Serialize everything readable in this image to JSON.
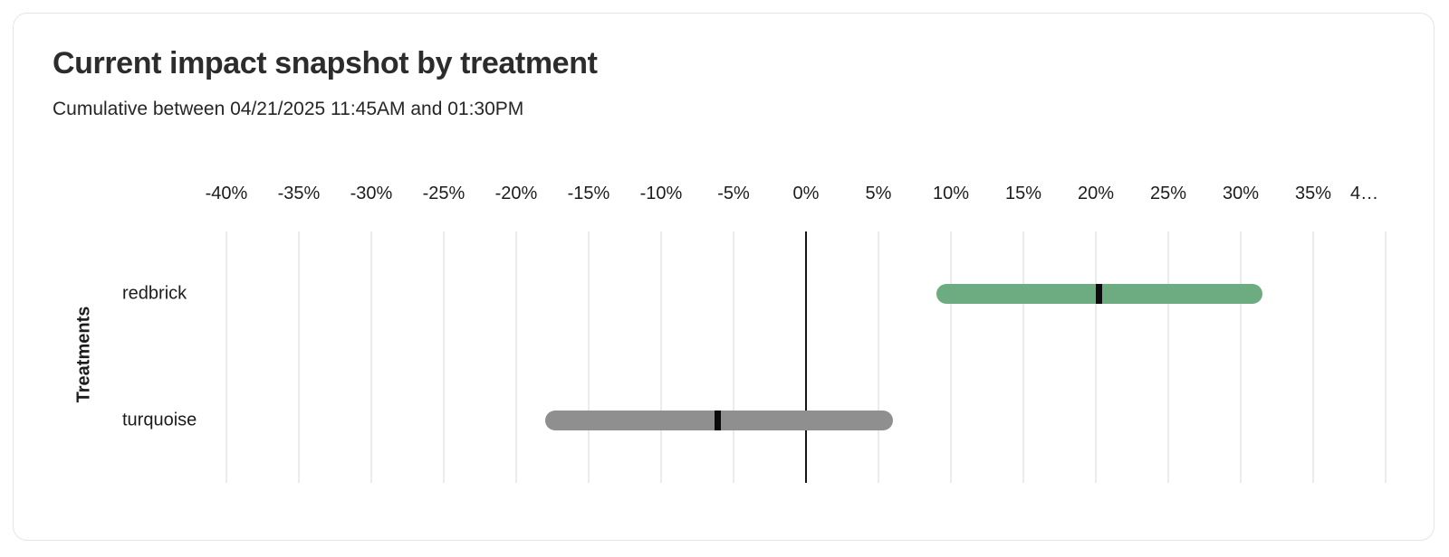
{
  "card": {
    "title": "Current impact snapshot by treatment",
    "subtitle": "Cumulative between 04/21/2025 11:45AM and 01:30PM"
  },
  "chart_data": {
    "type": "bar",
    "variant": "horizontal-range-bars-with-point-markers",
    "title": "Current impact snapshot by treatment",
    "subtitle": "Cumulative between 04/21/2025 11:45AM and 01:30PM",
    "xlabel": "",
    "ylabel": "Treatments",
    "x_unit": "%",
    "xlim": [
      -40,
      40
    ],
    "x_tick_step": 5,
    "x_tick_labels": [
      "-40%",
      "-35%",
      "-30%",
      "-25%",
      "-20%",
      "-15%",
      "-10%",
      "-5%",
      "0%",
      "5%",
      "10%",
      "15%",
      "20%",
      "25%",
      "30%",
      "35%",
      "4…"
    ],
    "grid": "vertical",
    "zero_line": true,
    "legend": "none",
    "categories": [
      "redbrick",
      "turquoise"
    ],
    "series": [
      {
        "name": "redbrick",
        "range_low_pct": 9,
        "range_high_pct": 31.5,
        "point_estimate_pct": 20.2,
        "bar_color": "#6dac80"
      },
      {
        "name": "turquoise",
        "range_low_pct": -18,
        "range_high_pct": 6,
        "point_estimate_pct": -6.1,
        "bar_color": "#8f8f8f"
      }
    ],
    "colors": {
      "grid_line": "#ebebeb",
      "zero_line": "#161616",
      "point_marker": "#0b0b0b",
      "text": "#1c1c1c"
    }
  }
}
